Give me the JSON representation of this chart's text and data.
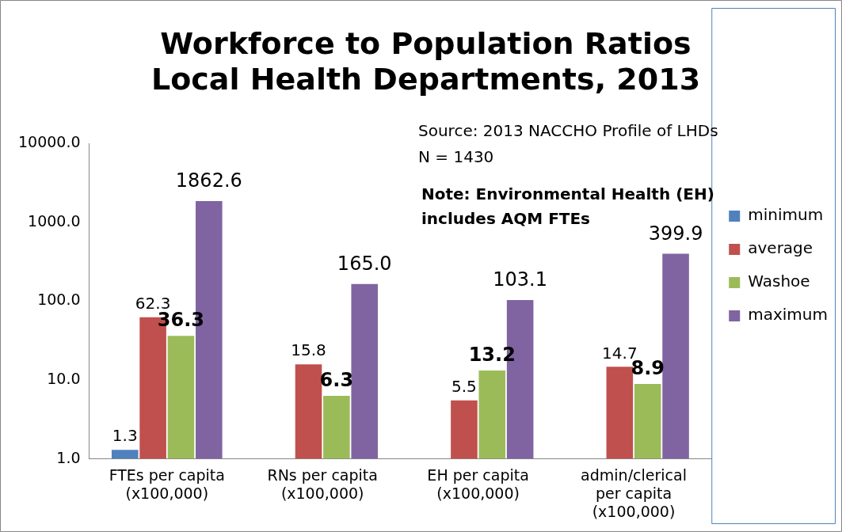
{
  "chart_data": {
    "type": "bar",
    "title": "Workforce to Population Ratios\nLocal Health Departments, 2013",
    "categories": [
      "FTEs per capita\n(x100,000)",
      "RNs per capita\n(x100,000)",
      "EH per capita\n(x100,000)",
      "admin/clerical\nper capita\n(x100,000)"
    ],
    "series": [
      {
        "name": "minimum",
        "color": "#4f81bd",
        "values": [
          1.3,
          null,
          null,
          null
        ],
        "value_labels": [
          "1.3",
          null,
          null,
          null
        ]
      },
      {
        "name": "average",
        "color": "#c0504d",
        "values": [
          62.3,
          15.8,
          5.5,
          14.7
        ],
        "value_labels": [
          "62.3",
          "15.8",
          "5.5",
          "14.7"
        ]
      },
      {
        "name": "Washoe",
        "color": "#9bbb59",
        "values": [
          36.3,
          6.3,
          13.2,
          8.9
        ],
        "value_labels": [
          "36.3",
          "6.3",
          "13.2",
          "8.9"
        ]
      },
      {
        "name": "maximum",
        "color": "#8064a2",
        "values": [
          1862.6,
          165.0,
          103.1,
          399.9
        ],
        "value_labels": [
          "1862.6",
          "165.0",
          "103.1",
          "399.9"
        ]
      }
    ],
    "log": "y",
    "ylim": [
      1,
      10000
    ],
    "yticks": [
      {
        "value": 1,
        "label": "1.0"
      },
      {
        "value": 10,
        "label": "10.0"
      },
      {
        "value": 100,
        "label": "100.0"
      },
      {
        "value": 1000,
        "label": "1000.0"
      },
      {
        "value": 10000,
        "label": "10000.0"
      }
    ],
    "grid": false,
    "legend": "right",
    "annotations": [
      "Source: 2013 NACCHO Profile of LHDs",
      "N = 1430",
      "Note: Environmental Health (EH)\nincludes AQM FTEs"
    ]
  }
}
